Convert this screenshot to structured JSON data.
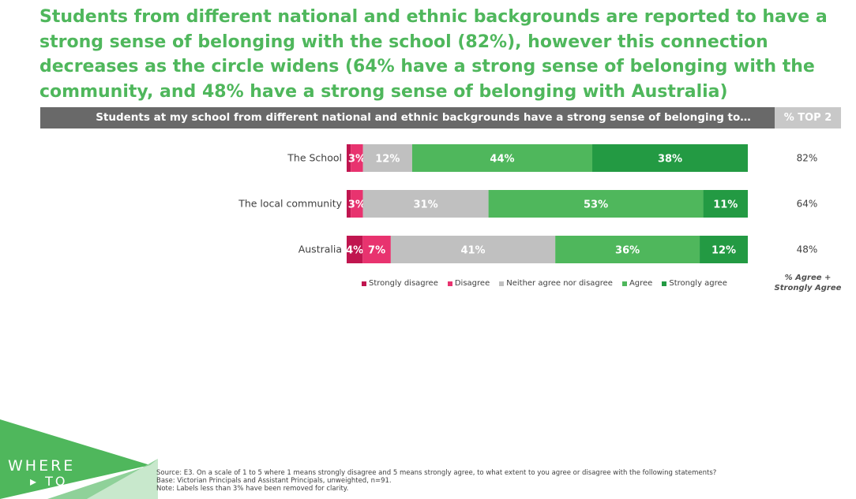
{
  "headline": "Students from different national and ethnic backgrounds are reported to have a strong sense of belonging with the school (82%), however this connection decreases as the circle widens (64% have a strong sense of belonging with the community, and 48% have a strong sense of belonging with Australia)",
  "header": {
    "question": "Students at my school from different national and ethnic backgrounds have a strong sense of belonging to…",
    "top2_label": "% TOP 2"
  },
  "colors": {
    "strongly_disagree": "#c0154f",
    "disagree": "#e8336f",
    "neither": "#c0c0c0",
    "agree": "#4fb75c",
    "strongly_agree": "#239a43",
    "headline": "#4fb75c",
    "header_bar": "#696969",
    "top2_bar": "#c8c8c8"
  },
  "chart_data": {
    "type": "bar",
    "orientation": "horizontal",
    "stacked": true,
    "categories": [
      "The School",
      "The local community",
      "Australia"
    ],
    "series": [
      {
        "name": "Strongly disagree",
        "values": [
          1,
          1,
          4
        ],
        "labels": [
          "",
          "",
          "4%"
        ]
      },
      {
        "name": "Disagree",
        "values": [
          3,
          3,
          7
        ],
        "labels": [
          "3%",
          "3%",
          "7%"
        ]
      },
      {
        "name": "Neither agree nor disagree",
        "values": [
          12,
          31,
          41
        ],
        "labels": [
          "12%",
          "31%",
          "41%"
        ]
      },
      {
        "name": "Agree",
        "values": [
          44,
          53,
          36
        ],
        "labels": [
          "44%",
          "53%",
          "36%"
        ]
      },
      {
        "name": "Strongly agree",
        "values": [
          38,
          11,
          12
        ],
        "labels": [
          "38%",
          "11%",
          "12%"
        ]
      }
    ],
    "top2": [
      "82%",
      "64%",
      "48%"
    ],
    "top2_note": "% Agree + Strongly Agree",
    "legend_position": "bottom"
  },
  "logo": {
    "line1": "WHERE",
    "line2": "▸ TO"
  },
  "source_lines": [
    "Source: E3. On a scale of 1 to 5 where 1 means strongly disagree and 5 means strongly agree, to what extent to you agree or disagree with the following statements?",
    "Base: Victorian Principals and Assistant Principals, unweighted, n=91.",
    "Note: Labels less than 3% have been removed for clarity."
  ]
}
